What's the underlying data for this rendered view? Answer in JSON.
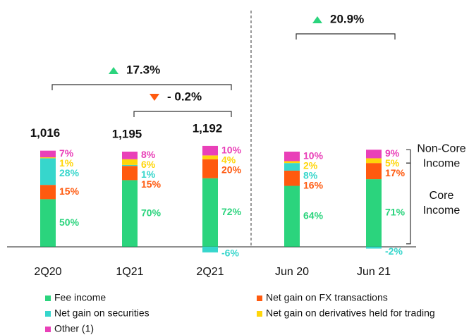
{
  "chart_data": {
    "type": "stacked_bar",
    "categories": [
      "2Q20",
      "1Q21",
      "2Q21",
      "Jun 20",
      "Jun 21"
    ],
    "total_labels": [
      "1,016",
      "1,195",
      "1,192"
    ],
    "series": [
      {
        "name": "Fee income",
        "color": "#2bd47d",
        "values": [
          50,
          70,
          72,
          64,
          71
        ],
        "value_labels": [
          "50%",
          "70%",
          "72%",
          "64%",
          "71%"
        ]
      },
      {
        "name": "Net gain on FX transactions",
        "color": "#ff5a0f",
        "values": [
          15,
          15,
          20,
          16,
          17
        ],
        "value_labels": [
          "15%",
          "15%",
          "20%",
          "16%",
          "17%"
        ]
      },
      {
        "name": "Net gain on securities",
        "color": "#36d6cc",
        "values": [
          28,
          1,
          -6,
          8,
          -2
        ],
        "value_labels": [
          "28%",
          "1%",
          "-6%",
          "8%",
          "-2%"
        ]
      },
      {
        "name": "Net gain on derivatives held for trading",
        "color": "#ffd60a",
        "values": [
          1,
          6,
          4,
          2,
          5
        ],
        "value_labels": [
          "1%",
          "6%",
          "4%",
          "2%",
          "5%"
        ]
      },
      {
        "name": "Other (1)",
        "color": "#e940b8",
        "values": [
          7,
          8,
          10,
          10,
          9
        ],
        "value_labels": [
          "7%",
          "8%",
          "10%",
          "10%",
          "9%"
        ]
      }
    ],
    "annotations": [
      {
        "label": "17.3%",
        "trend": "up"
      },
      {
        "label": "- 0.2%",
        "trend": "down"
      },
      {
        "label": "20.9%",
        "trend": "up"
      }
    ],
    "side_labels": [
      [
        "Non-Core",
        "Income"
      ],
      [
        "Core",
        "Income"
      ]
    ],
    "ylim": [
      -15,
      215
    ]
  }
}
